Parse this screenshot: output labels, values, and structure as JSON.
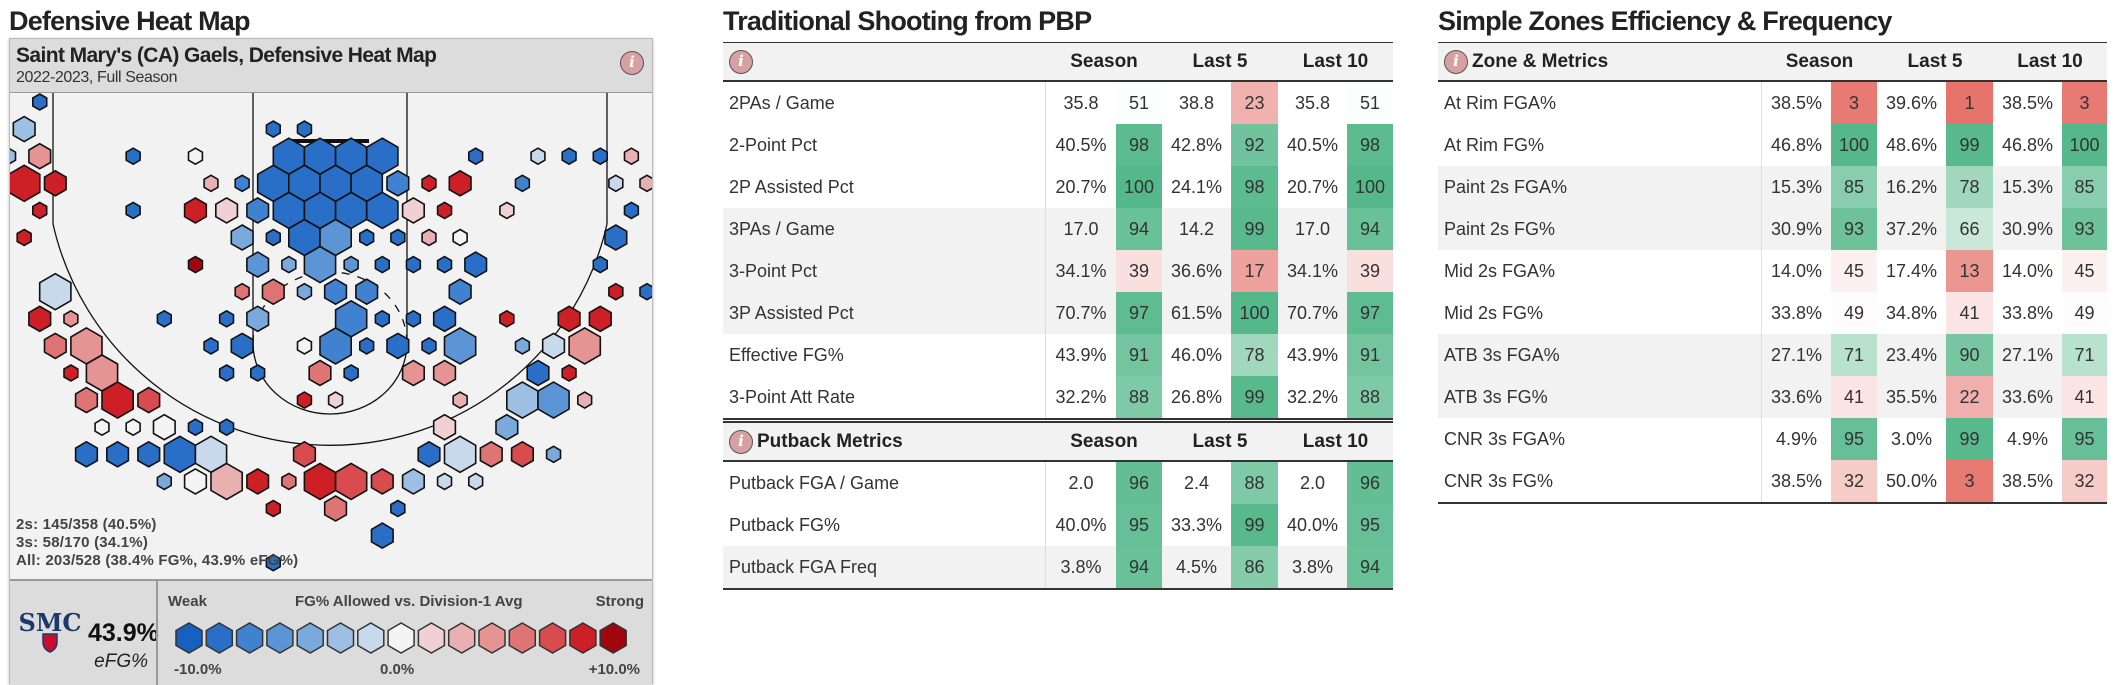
{
  "heatmap": {
    "section_title": "Defensive Heat Map",
    "title": "Saint Mary's (CA) Gaels, Defensive Heat Map",
    "subtitle": "2022-2023, Full Season",
    "info_icon": "i",
    "stats": [
      "2s: 145/358 (40.5%)",
      "3s: 58/170 (34.1%)",
      "All: 203/528 (38.4% FG%, 43.9% eFG%)"
    ],
    "logo_text": "SMC",
    "efg_value": "43.9%",
    "efg_label": "eFG%",
    "legend": {
      "weak": "Weak",
      "title": "FG% Allowed vs. Division-1 Avg",
      "strong": "Strong",
      "min": "-10.0%",
      "mid": "0.0%",
      "max": "+10.0%",
      "colors": [
        "#1560c0",
        "#2a6fc7",
        "#4182d0",
        "#5b95d6",
        "#7aa9dc",
        "#9dbfe3",
        "#c9d9ec",
        "#f4f4f4",
        "#f0d0d2",
        "#e9b0b2",
        "#e59393",
        "#df7474",
        "#d84b4e",
        "#cc1f26",
        "#a0060e"
      ]
    }
  },
  "traditional": {
    "section_title": "Traditional Shooting from PBP",
    "info_icon": "i",
    "columns": [
      "Season",
      "Last 5",
      "Last 10"
    ],
    "rows": [
      {
        "label": "2PAs / Game",
        "vals": [
          "35.8",
          "38.8",
          "35.8"
        ],
        "pcts": [
          51,
          23,
          51
        ]
      },
      {
        "label": "2-Point Pct",
        "vals": [
          "40.5%",
          "42.8%",
          "40.5%"
        ],
        "pcts": [
          98,
          92,
          98
        ]
      },
      {
        "label": "2P Assisted Pct",
        "vals": [
          "20.7%",
          "24.1%",
          "20.7%"
        ],
        "pcts": [
          100,
          98,
          100
        ]
      },
      {
        "label": "3PAs / Game",
        "vals": [
          "17.0",
          "14.2",
          "17.0"
        ],
        "pcts": [
          94,
          99,
          94
        ]
      },
      {
        "label": "3-Point Pct",
        "vals": [
          "34.1%",
          "36.6%",
          "34.1%"
        ],
        "pcts": [
          39,
          17,
          39
        ]
      },
      {
        "label": "3P Assisted Pct",
        "vals": [
          "70.7%",
          "61.5%",
          "70.7%"
        ],
        "pcts": [
          97,
          100,
          97
        ]
      },
      {
        "label": "Effective FG%",
        "vals": [
          "43.9%",
          "46.0%",
          "43.9%"
        ],
        "pcts": [
          91,
          78,
          91
        ]
      },
      {
        "label": "3-Point Att Rate",
        "vals": [
          "32.2%",
          "26.8%",
          "32.2%"
        ],
        "pcts": [
          88,
          99,
          88
        ]
      }
    ],
    "putback": {
      "title": "Putback Metrics",
      "info_icon": "i",
      "columns": [
        "Season",
        "Last 5",
        "Last 10"
      ],
      "rows": [
        {
          "label": "Putback FGA / Game",
          "vals": [
            "2.0",
            "2.4",
            "2.0"
          ],
          "pcts": [
            96,
            88,
            96
          ]
        },
        {
          "label": "Putback FG%",
          "vals": [
            "40.0%",
            "33.3%",
            "40.0%"
          ],
          "pcts": [
            95,
            99,
            95
          ]
        },
        {
          "label": "Putback FGA Freq",
          "vals": [
            "3.8%",
            "4.5%",
            "3.8%"
          ],
          "pcts": [
            94,
            86,
            94
          ]
        }
      ]
    }
  },
  "zones": {
    "section_title": "Simple Zones Efficiency & Frequency",
    "info_icon": "i",
    "header_label": "Zone & Metrics",
    "columns": [
      "Season",
      "Last 5",
      "Last 10"
    ],
    "rows": [
      {
        "label": "At Rim FGA%",
        "vals": [
          "38.5%",
          "39.6%",
          "38.5%"
        ],
        "pcts": [
          3,
          1,
          3
        ]
      },
      {
        "label": "At Rim FG%",
        "vals": [
          "46.8%",
          "48.6%",
          "46.8%"
        ],
        "pcts": [
          100,
          99,
          100
        ]
      },
      {
        "label": "Paint 2s FGA%",
        "vals": [
          "15.3%",
          "16.2%",
          "15.3%"
        ],
        "pcts": [
          85,
          78,
          85
        ]
      },
      {
        "label": "Paint 2s FG%",
        "vals": [
          "30.9%",
          "37.2%",
          "30.9%"
        ],
        "pcts": [
          93,
          66,
          93
        ]
      },
      {
        "label": "Mid 2s FGA%",
        "vals": [
          "14.0%",
          "17.4%",
          "14.0%"
        ],
        "pcts": [
          45,
          13,
          45
        ]
      },
      {
        "label": "Mid 2s FG%",
        "vals": [
          "33.8%",
          "34.8%",
          "33.8%"
        ],
        "pcts": [
          49,
          41,
          49
        ]
      },
      {
        "label": "ATB 3s FGA%",
        "vals": [
          "27.1%",
          "23.4%",
          "27.1%"
        ],
        "pcts": [
          71,
          90,
          71
        ]
      },
      {
        "label": "ATB 3s FG%",
        "vals": [
          "33.6%",
          "35.5%",
          "33.6%"
        ],
        "pcts": [
          41,
          22,
          41
        ]
      },
      {
        "label": "CNR 3s FGA%",
        "vals": [
          "4.9%",
          "3.0%",
          "4.9%"
        ],
        "pcts": [
          95,
          99,
          95
        ]
      },
      {
        "label": "CNR 3s FG%",
        "vals": [
          "38.5%",
          "50.0%",
          "38.5%"
        ],
        "pcts": [
          32,
          3,
          32
        ]
      }
    ]
  },
  "colors": {
    "good": "#55b88a",
    "bad": "#e5716a",
    "navy": "#1b3a6b",
    "red": "#c8102e"
  }
}
